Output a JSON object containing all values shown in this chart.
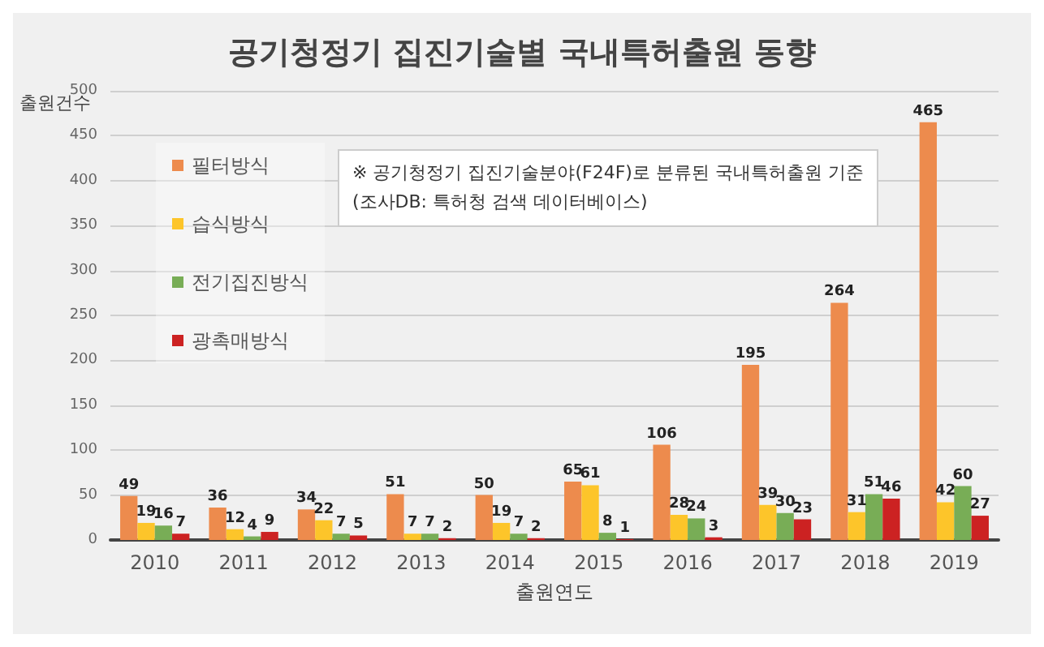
{
  "chart_data": {
    "type": "bar",
    "title": "공기청정기 집진기술별 국내특허출원 동향",
    "xlabel": "출원연도",
    "ylabel": "출원건수",
    "categories": [
      "2010",
      "2011",
      "2012",
      "2013",
      "2014",
      "2015",
      "2016",
      "2017",
      "2018",
      "2019"
    ],
    "series": [
      {
        "name": "필터방식",
        "color": "#ed8b4d",
        "values": [
          49,
          36,
          34,
          51,
          50,
          65,
          106,
          195,
          264,
          465
        ]
      },
      {
        "name": "습식방식",
        "color": "#fdc52a",
        "values": [
          19,
          12,
          22,
          7,
          19,
          61,
          28,
          39,
          31,
          42
        ]
      },
      {
        "name": "전기집진방식",
        "color": "#78ad56",
        "values": [
          16,
          4,
          7,
          7,
          7,
          8,
          24,
          30,
          51,
          60
        ]
      },
      {
        "name": "광촉매방식",
        "color": "#cc2222",
        "values": [
          7,
          9,
          5,
          2,
          2,
          1,
          3,
          23,
          46,
          27
        ]
      }
    ],
    "ylim": [
      0,
      500
    ],
    "yticks": [
      0,
      50,
      100,
      150,
      200,
      250,
      300,
      350,
      400,
      450,
      500
    ],
    "grid": "y",
    "legend": "top left",
    "data_labels": true,
    "annotations": [
      "※ 공기청정기 집진기술분야(F24F)로 분류된 국내특허출원 기준",
      "(조사DB: 특허청 검색 데이터베이스)"
    ]
  }
}
